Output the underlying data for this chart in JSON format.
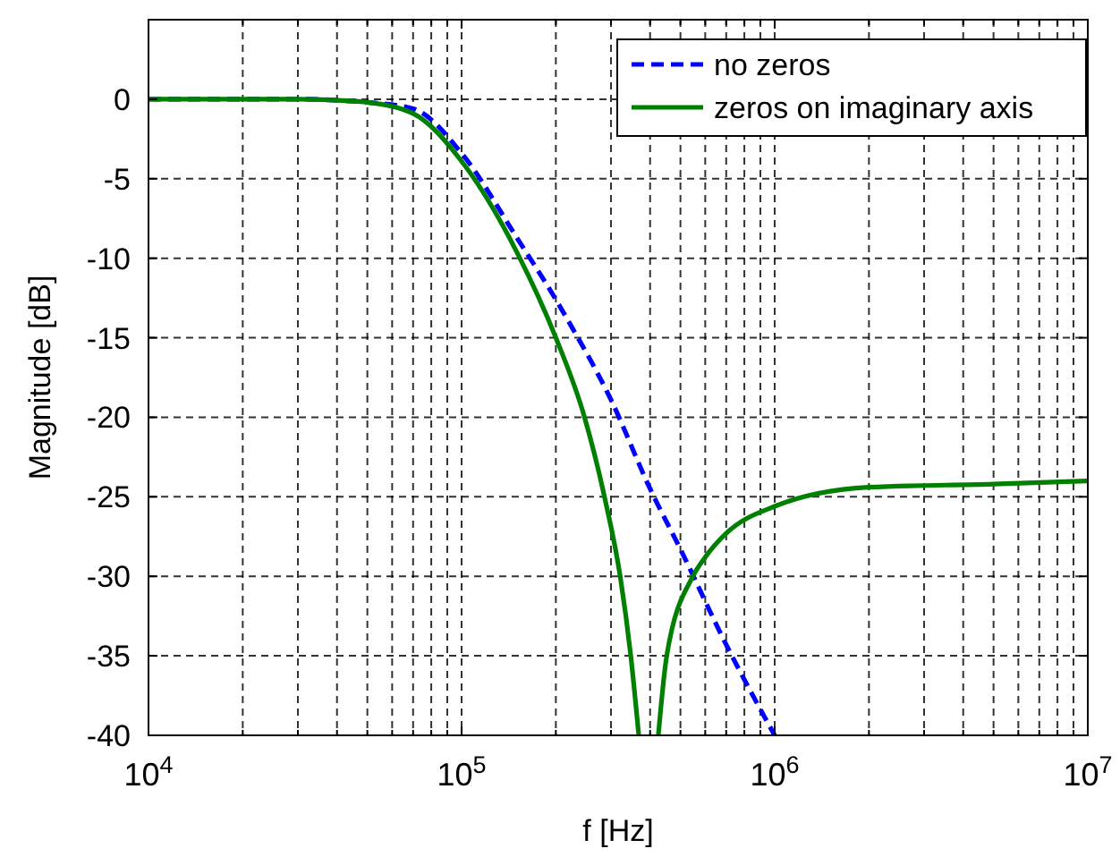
{
  "chart_data": {
    "type": "line",
    "xlabel": "f [Hz]",
    "ylabel": "Magnitude [dB]",
    "log": "x",
    "grid": true,
    "legend": "top right",
    "xlim": [
      10000,
      10000000
    ],
    "ylim": [
      -40,
      5
    ],
    "xticks": [
      {
        "value": 10000,
        "label": "10$^{4}$"
      },
      {
        "value": 20000,
        "label": null
      },
      {
        "value": 30000,
        "label": null
      },
      {
        "value": 40000,
        "label": null
      },
      {
        "value": 50000,
        "label": null
      },
      {
        "value": 60000,
        "label": null
      },
      {
        "value": 70000,
        "label": null
      },
      {
        "value": 80000,
        "label": null
      },
      {
        "value": 90000,
        "label": null
      },
      {
        "value": 100000,
        "label": "10$^{5}$"
      },
      {
        "value": 200000,
        "label": null
      },
      {
        "value": 300000,
        "label": null
      },
      {
        "value": 400000,
        "label": null
      },
      {
        "value": 500000,
        "label": null
      },
      {
        "value": 600000,
        "label": null
      },
      {
        "value": 700000,
        "label": null
      },
      {
        "value": 800000,
        "label": null
      },
      {
        "value": 900000,
        "label": null
      },
      {
        "value": 1000000,
        "label": "10$^{6}$"
      },
      {
        "value": 2000000,
        "label": null
      },
      {
        "value": 3000000,
        "label": null
      },
      {
        "value": 4000000,
        "label": null
      },
      {
        "value": 5000000,
        "label": null
      },
      {
        "value": 6000000,
        "label": null
      },
      {
        "value": 7000000,
        "label": null
      },
      {
        "value": 8000000,
        "label": null
      },
      {
        "value": 9000000,
        "label": null
      },
      {
        "value": 10000000,
        "label": "10$^{7}$"
      }
    ],
    "yticks": [
      0,
      -5,
      -10,
      -15,
      -20,
      -25,
      -30,
      -35,
      -40
    ],
    "series": [
      {
        "name": "no zeros",
        "color": "#0000ff",
        "line_style": "dashed",
        "x": [
          10000,
          30000,
          50000,
          70000,
          100000,
          150000,
          200000,
          220000,
          300000,
          400000,
          500000,
          700000,
          1000000
        ],
        "values": [
          0,
          0,
          -0.2,
          -0.6,
          -3.4,
          -8.7,
          -12.6,
          -14,
          -18.9,
          -24.5,
          -28.3,
          -34.3,
          -40
        ]
      },
      {
        "name": "zeros on imaginary axis",
        "color": "#008000",
        "line_style": "solid",
        "x": [
          10000,
          30000,
          43000,
          50000,
          70000,
          100000,
          150000,
          200000,
          247000,
          286000,
          321000,
          347000,
          368000,
          400000,
          425000,
          452000,
          548000,
          600000,
          700000,
          1000000,
          2000000,
          5000000,
          10000000
        ],
        "values": [
          0,
          0,
          -0.1,
          -0.2,
          -0.9,
          -3.9,
          -9.6,
          -15,
          -20,
          -25,
          -30,
          -35,
          -40,
          null,
          -40,
          -35,
          -30,
          -28.8,
          -27.3,
          -25.6,
          -24.4,
          -24.2,
          -24
        ]
      }
    ]
  }
}
